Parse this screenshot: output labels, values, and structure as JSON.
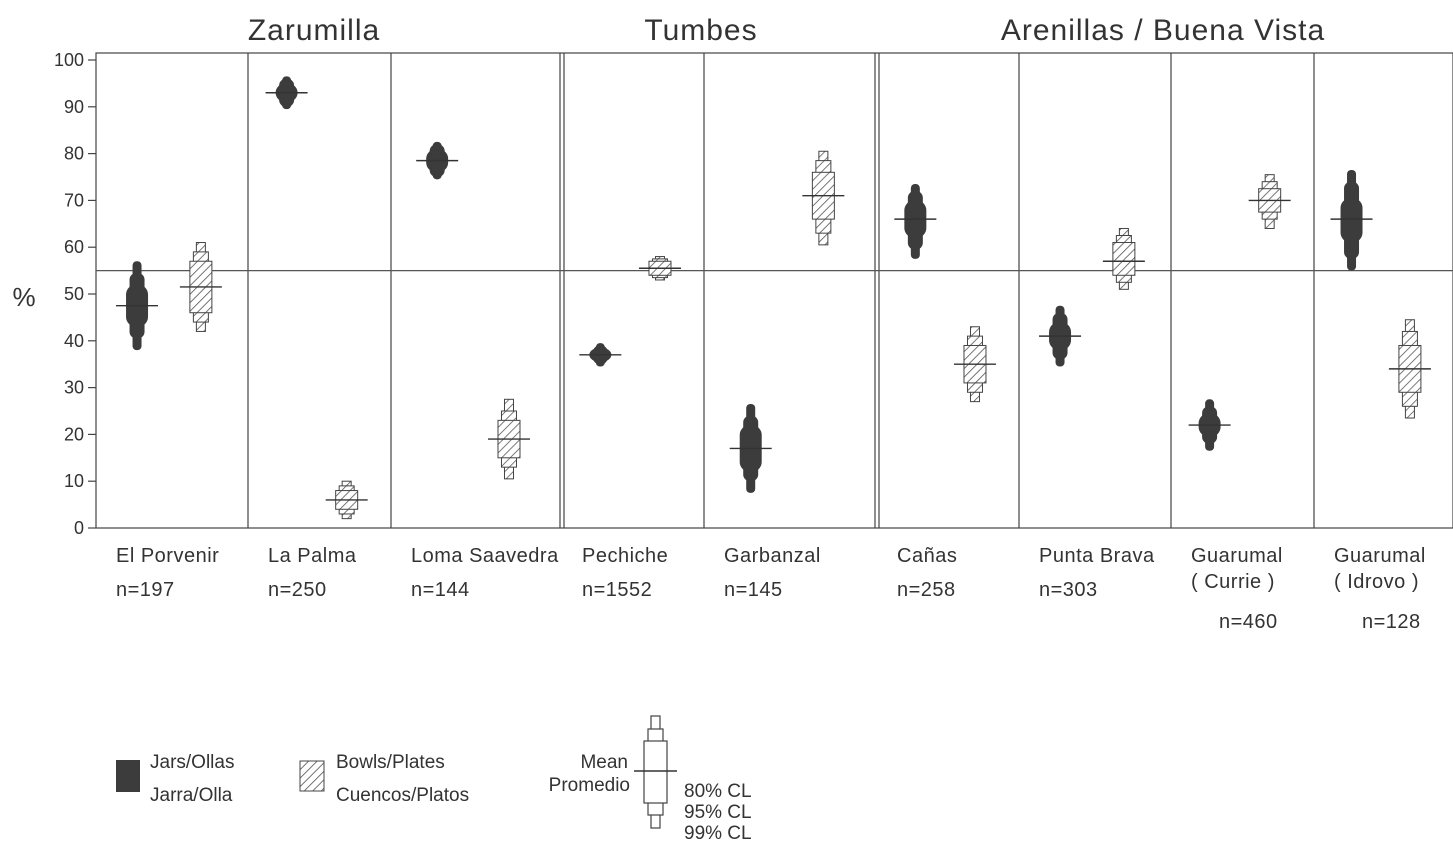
{
  "chart_data": {
    "type": "confidence-interval",
    "ylabel": "%",
    "ylim": [
      0,
      100
    ],
    "yticks": [
      0,
      10,
      20,
      30,
      40,
      50,
      60,
      70,
      80,
      90,
      100
    ],
    "reference_line": 55,
    "regions": [
      {
        "title": "Zarumilla",
        "sites": [
          0,
          1,
          2
        ]
      },
      {
        "title": "Tumbes",
        "sites": [
          3,
          4
        ]
      },
      {
        "title": "Arenillas / Buena Vista",
        "sites": [
          5,
          6,
          7,
          8
        ]
      }
    ],
    "sites": [
      {
        "name": "El Porvenir",
        "n": "n=197",
        "jars": {
          "mean": 47.5,
          "ci80": [
            43,
            52
          ],
          "ci95": [
            40.5,
            54.5
          ],
          "ci99": [
            38,
            57
          ]
        },
        "bowls": {
          "mean": 51.5,
          "ci80": [
            46,
            57
          ],
          "ci95": [
            44,
            59
          ],
          "ci99": [
            42,
            61
          ]
        }
      },
      {
        "name": "La Palma",
        "n": "n=250",
        "jars": {
          "mean": 93,
          "ci80": [
            91,
            95
          ],
          "ci95": [
            90,
            96
          ],
          "ci99": [
            89.5,
            96.5
          ]
        },
        "bowls": {
          "mean": 6,
          "ci80": [
            4,
            8
          ],
          "ci95": [
            3,
            9
          ],
          "ci99": [
            2,
            10
          ]
        }
      },
      {
        "name": "Loma Saavedra",
        "n": "n=144",
        "jars": {
          "mean": 78.5,
          "ci80": [
            76,
            81
          ],
          "ci95": [
            75,
            82
          ],
          "ci99": [
            74.5,
            82.5
          ]
        },
        "bowls": {
          "mean": 19,
          "ci80": [
            15,
            23
          ],
          "ci95": [
            13,
            25
          ],
          "ci99": [
            10.5,
            27.5
          ]
        }
      },
      {
        "name": "Pechiche",
        "n": "n=1552",
        "jars": {
          "mean": 37,
          "ci80": [
            35.5,
            38.5
          ],
          "ci95": [
            35,
            39
          ],
          "ci99": [
            34.5,
            39.5
          ]
        },
        "bowls": {
          "mean": 55.5,
          "ci80": [
            54,
            57
          ],
          "ci95": [
            53.5,
            57.5
          ],
          "ci99": [
            53,
            58
          ]
        }
      },
      {
        "name": "Garbanzal",
        "n": "n=145",
        "jars": {
          "mean": 17,
          "ci80": [
            12,
            22
          ],
          "ci95": [
            10,
            24
          ],
          "ci99": [
            7.5,
            26.5
          ]
        },
        "bowls": {
          "mean": 71,
          "ci80": [
            66,
            76
          ],
          "ci95": [
            63,
            78.5
          ],
          "ci99": [
            60.5,
            80.5
          ]
        }
      },
      {
        "name": "Cañas",
        "n": "n=258",
        "jars": {
          "mean": 66,
          "ci80": [
            62,
            70
          ],
          "ci95": [
            59.5,
            72
          ],
          "ci99": [
            57.5,
            73.5
          ]
        },
        "bowls": {
          "mean": 35,
          "ci80": [
            31,
            39
          ],
          "ci95": [
            29,
            41
          ],
          "ci99": [
            27,
            43
          ]
        }
      },
      {
        "name": "Punta Brava",
        "n": "n=303",
        "jars": {
          "mean": 41,
          "ci80": [
            38,
            44
          ],
          "ci95": [
            36,
            46
          ],
          "ci99": [
            34.5,
            47.5
          ]
        },
        "bowls": {
          "mean": 57,
          "ci80": [
            54,
            61
          ],
          "ci95": [
            52.5,
            62.5
          ],
          "ci99": [
            51,
            64
          ]
        }
      },
      {
        "name": "Guarumal",
        "name2": "( Currie )",
        "n": "n=460",
        "jars": {
          "mean": 22,
          "ci80": [
            19.5,
            24.5
          ],
          "ci95": [
            18,
            26
          ],
          "ci99": [
            16.5,
            27.5
          ]
        },
        "bowls": {
          "mean": 70,
          "ci80": [
            67.5,
            72.5
          ],
          "ci95": [
            66,
            74
          ],
          "ci99": [
            64,
            75.5
          ]
        }
      },
      {
        "name": "Guarumal",
        "name2": "( Idrovo )",
        "n": "n=128",
        "jars": {
          "mean": 66,
          "ci80": [
            61,
            70.5
          ],
          "ci95": [
            57.5,
            74
          ],
          "ci99": [
            55,
            76.5
          ]
        },
        "bowls": {
          "mean": 34,
          "ci80": [
            29,
            39
          ],
          "ci95": [
            26,
            42
          ],
          "ci99": [
            23.5,
            44.5
          ]
        }
      }
    ],
    "legend": {
      "jars_en": "Jars/Ollas",
      "jars_es": "Jarra/Olla",
      "bowls_en": "Bowls/Plates",
      "bowls_es": "Cuencos/Platos",
      "mean_en": "Mean",
      "mean_es": "Promedio",
      "cl80": "80% CL",
      "cl95": "95% CL",
      "cl99": "99% CL"
    },
    "colors": {
      "jars": "#3c3c3c",
      "bowls_hatch": "#555555",
      "line": "#333333"
    }
  }
}
